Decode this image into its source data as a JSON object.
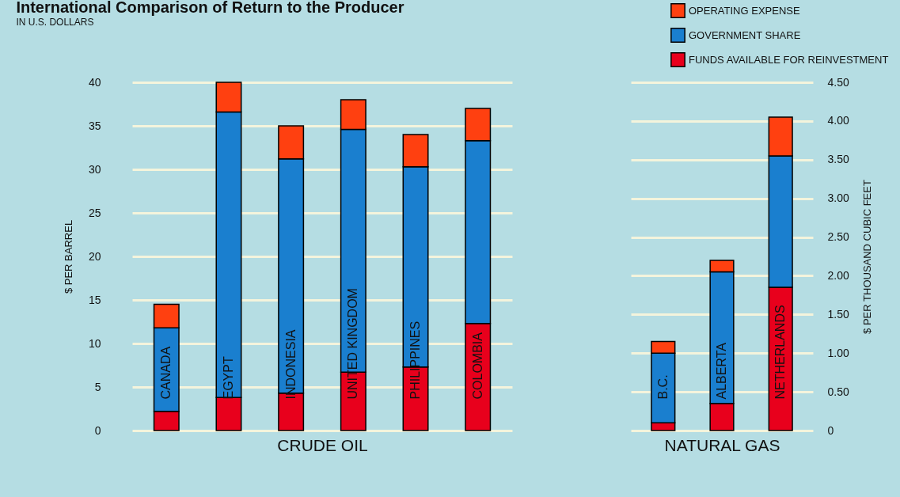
{
  "chart_data": [
    {
      "type": "bar",
      "title": "International Comparison of Return to the Producer",
      "subtitle": "IN U.S. DOLLARS",
      "xlabel": "CRUDE OIL",
      "ylabel": "$ PER BARREL",
      "stacked": true,
      "grid": "y",
      "legend": false,
      "categories": [
        "CANADA",
        "EGYPT",
        "INDONESIA",
        "UNITED  KINGDOM",
        "PHILIPPINES",
        "COLOMBIA"
      ],
      "series": [
        {
          "color": "#e8001c",
          "values": [
            2.2,
            3.8,
            4.3,
            6.7,
            7.3,
            12.3
          ]
        },
        {
          "color": "#1a7fcf",
          "values": [
            9.6,
            32.8,
            26.9,
            27.9,
            23.0,
            21.0
          ]
        },
        {
          "color": "#ff4010",
          "values": [
            2.7,
            3.4,
            3.8,
            3.4,
            3.7,
            3.7
          ]
        }
      ],
      "ylim": [
        0,
        40
      ],
      "yticks": [
        0,
        5,
        10,
        15,
        20,
        25,
        30,
        35,
        40
      ]
    },
    {
      "type": "bar",
      "xlabel": "NATURAL GAS",
      "y2label": "$ PER THOUSAND CUBIC FEET",
      "stacked": true,
      "grid": "y",
      "legend": "top right",
      "categories": [
        "B.C.",
        "ALBERTA",
        "NETHERLANDS"
      ],
      "series": [
        {
          "name": "FUNDS AVAILABLE FOR REINVESTMENT",
          "color": "#e8001c",
          "axis": "y2",
          "values": [
            0.1,
            0.35,
            1.85
          ]
        },
        {
          "name": "GOVERNMENT SHARE",
          "color": "#1a7fcf",
          "axis": "y2",
          "values": [
            0.9,
            1.7,
            1.7
          ]
        },
        {
          "name": "OPERATING EXPENSE",
          "color": "#ff4010",
          "axis": "y2",
          "values": [
            0.15,
            0.15,
            0.5
          ]
        }
      ],
      "y2lim": [
        0,
        4.5
      ],
      "y2ticks": [
        0,
        {
          "value": 0.5,
          "label": "0.50"
        },
        {
          "value": 1,
          "label": "1.00"
        },
        {
          "value": 1.5,
          "label": "1.50"
        },
        {
          "value": 2,
          "label": "2.00"
        },
        {
          "value": 2.5,
          "label": "2.50"
        },
        {
          "value": 3,
          "label": "3.00"
        },
        {
          "value": 3.5,
          "label": "3.50"
        },
        {
          "value": 4,
          "label": "4.00"
        },
        {
          "value": 4.5,
          "label": "4.50"
        }
      ]
    }
  ]
}
